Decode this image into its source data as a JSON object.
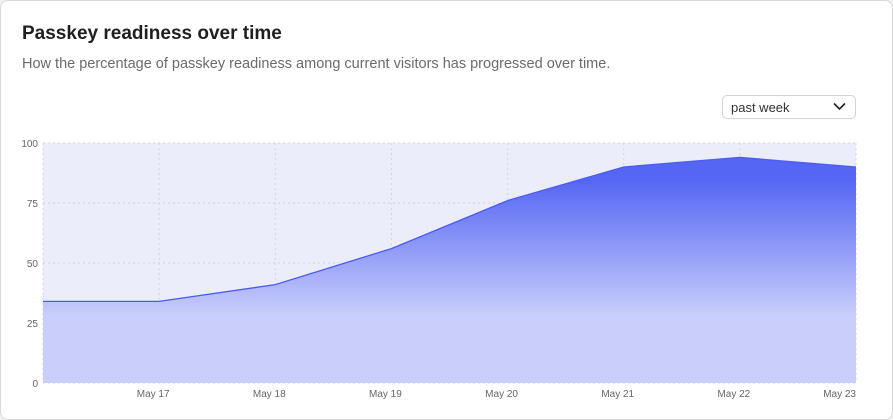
{
  "header": {
    "title": "Passkey readiness over time",
    "subtitle": "How the percentage of passkey readiness among current visitors has progressed over time."
  },
  "range_select": {
    "value": "past week"
  },
  "colors": {
    "line": "#4b5cf0",
    "fill_top": "#5566f4",
    "fill_bottom": "#c9cefb",
    "plot_bg": "#ebedfb",
    "grid": "#d3d3e3"
  },
  "chart_data": {
    "type": "area",
    "title": "Passkey readiness over time",
    "x_labels": [
      "",
      "May 17",
      "May 18",
      "May 19",
      "May 20",
      "May 21",
      "May 22",
      "May 23"
    ],
    "values": [
      34,
      34,
      41,
      56,
      76,
      90,
      94,
      90
    ],
    "ylim": [
      0,
      100
    ],
    "y_ticks": [
      0,
      25,
      50,
      75,
      100
    ],
    "grid": true,
    "xlabel": "",
    "ylabel": ""
  }
}
